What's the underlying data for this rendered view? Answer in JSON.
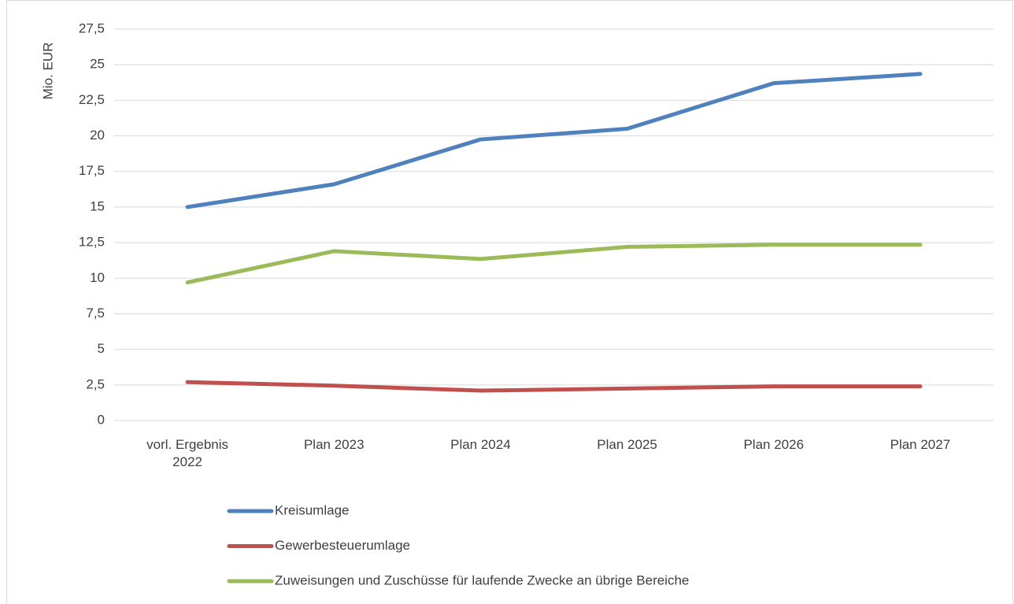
{
  "chart_data": {
    "type": "line",
    "y_label": "Mio. EUR",
    "categories": [
      "vorl. Ergebnis 2022",
      "Plan 2023",
      "Plan 2024",
      "Plan 2025",
      "Plan 2026",
      "Plan 2027"
    ],
    "series": [
      {
        "name": "Kreisumlage",
        "color": "#4f81bd",
        "values": [
          15.0,
          16.6,
          19.75,
          20.5,
          23.7,
          24.35
        ]
      },
      {
        "name": "Gewerbesteuerumlage",
        "color": "#c0504d",
        "values": [
          2.7,
          2.45,
          2.1,
          2.25,
          2.4,
          2.4
        ]
      },
      {
        "name": "Zuweisungen und Zuschüsse für laufende Zwecke an übrige Bereiche",
        "color": "#9bbb59",
        "values": [
          9.7,
          11.9,
          11.35,
          12.2,
          12.35,
          12.35
        ]
      }
    ],
    "ylim": [
      0,
      27.5
    ],
    "yticks": [
      0,
      {
        "value": 2.5,
        "label": "2,5"
      },
      5,
      {
        "value": 7.5,
        "label": "7,5"
      },
      10,
      {
        "value": 12.5,
        "label": "12,5"
      },
      15,
      {
        "value": 17.5,
        "label": "17,5"
      },
      20,
      {
        "value": 22.5,
        "label": "22,5"
      },
      25,
      {
        "value": 27.5,
        "label": "27,5"
      }
    ],
    "grid": true,
    "legend": "bottom"
  }
}
